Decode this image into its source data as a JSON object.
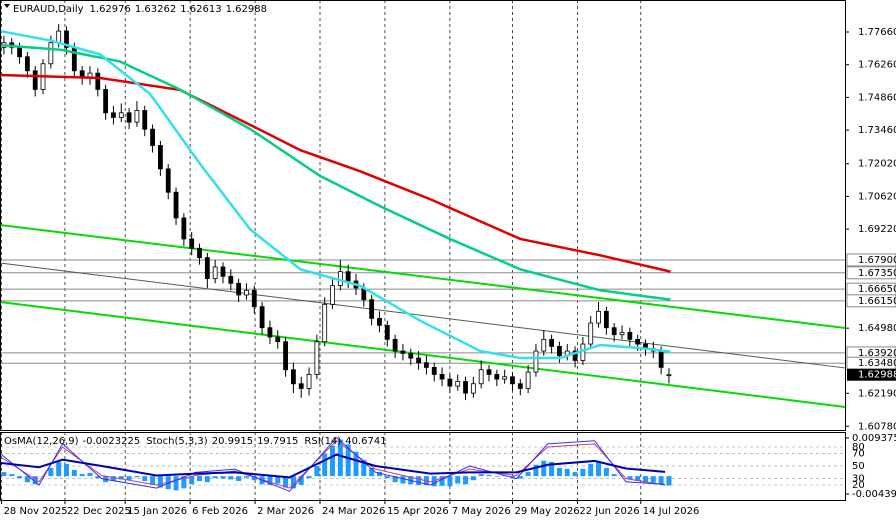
{
  "chart_data": {
    "type": "candlestick",
    "symbol": "EURAUD,Daily",
    "ylim": [
      1.6062,
      1.7903
    ],
    "xlim": [
      0,
      108
    ],
    "grid": true,
    "yticks": [
      {
        "value": 1.7766,
        "label": "1.77660"
      },
      {
        "value": 1.7626,
        "label": "1.76260"
      },
      {
        "value": 1.7486,
        "label": "1.74860"
      },
      {
        "value": 1.7346,
        "label": "1.73460"
      },
      {
        "value": 1.7202,
        "label": "1.72020"
      },
      {
        "value": 1.7062,
        "label": "1.70620"
      },
      {
        "value": 1.6922,
        "label": "1.69220"
      },
      {
        "value": 1.6498,
        "label": "1.64980"
      },
      {
        "value": 1.6219,
        "label": "1.62190"
      },
      {
        "value": 1.6078,
        "label": "1.60780"
      }
    ],
    "xticks": [
      {
        "value": 0.2,
        "label": "28 Nov 2025"
      },
      {
        "value": 8.3,
        "label": "22 Dec 2025"
      },
      {
        "value": 16,
        "label": "15 Jan 2026"
      },
      {
        "value": 24.3,
        "label": "6 Feb 2026"
      },
      {
        "value": 32.6,
        "label": "2 Mar 2026"
      },
      {
        "value": 40.9,
        "label": "24 Mar 2026"
      },
      {
        "value": 49.2,
        "label": "15 Apr 2026"
      },
      {
        "value": 57.5,
        "label": "7 May 2026"
      },
      {
        "value": 65.5,
        "label": "29 May 2026"
      },
      {
        "value": 73.8,
        "label": "22 Jun 2026"
      },
      {
        "value": 81.9,
        "label": "14 Jul 2026"
      }
    ],
    "levels": [
      {
        "value": 1.679,
        "label": "1.67900"
      },
      {
        "value": 1.6735,
        "label": "1.67350"
      },
      {
        "value": 1.6665,
        "label": "1.66650"
      },
      {
        "value": 1.6615,
        "label": "1.66150"
      },
      {
        "value": 1.6392,
        "label": "1.63920"
      },
      {
        "value": 1.6348,
        "label": "1.63480"
      }
    ],
    "ohlc": [
      [
        1.77,
        1.775,
        1.767,
        1.772
      ],
      [
        1.772,
        1.774,
        1.767,
        1.77
      ],
      [
        1.77,
        1.772,
        1.763,
        1.766
      ],
      [
        1.766,
        1.768,
        1.757,
        1.76
      ],
      [
        1.76,
        1.762,
        1.749,
        1.752
      ],
      [
        1.752,
        1.765,
        1.75,
        1.763
      ],
      [
        1.763,
        1.775,
        1.761,
        1.772
      ],
      [
        1.772,
        1.78,
        1.77,
        1.777
      ],
      [
        1.777,
        1.779,
        1.767,
        1.77
      ],
      [
        1.77,
        1.772,
        1.757,
        1.76
      ],
      [
        1.76,
        1.762,
        1.754,
        1.757
      ],
      [
        1.757,
        1.762,
        1.754,
        1.759
      ],
      [
        1.759,
        1.761,
        1.749,
        1.752
      ],
      [
        1.752,
        1.754,
        1.739,
        1.742
      ],
      [
        1.742,
        1.745,
        1.737,
        1.74
      ],
      [
        1.74,
        1.746,
        1.738,
        1.742
      ],
      [
        1.742,
        1.744,
        1.735,
        1.738
      ],
      [
        1.738,
        1.747,
        1.736,
        1.743
      ],
      [
        1.743,
        1.745,
        1.732,
        1.735
      ],
      [
        1.735,
        1.737,
        1.725,
        1.728
      ],
      [
        1.728,
        1.73,
        1.715,
        1.718
      ],
      [
        1.718,
        1.72,
        1.705,
        1.708
      ],
      [
        1.708,
        1.71,
        1.694,
        1.697
      ],
      [
        1.697,
        1.699,
        1.685,
        1.688
      ],
      [
        1.688,
        1.691,
        1.681,
        1.684
      ],
      [
        1.684,
        1.686,
        1.677,
        1.68
      ],
      [
        1.68,
        1.682,
        1.667,
        1.671
      ],
      [
        1.671,
        1.679,
        1.669,
        1.676
      ],
      [
        1.676,
        1.678,
        1.669,
        1.672
      ],
      [
        1.672,
        1.675,
        1.666,
        1.669
      ],
      [
        1.669,
        1.671,
        1.661,
        1.664
      ],
      [
        1.664,
        1.669,
        1.662,
        1.666
      ],
      [
        1.666,
        1.668,
        1.656,
        1.659
      ],
      [
        1.659,
        1.661,
        1.647,
        1.65
      ],
      [
        1.65,
        1.653,
        1.643,
        1.646
      ],
      [
        1.646,
        1.649,
        1.641,
        1.644
      ],
      [
        1.644,
        1.646,
        1.629,
        1.632
      ],
      [
        1.632,
        1.635,
        1.622,
        1.626
      ],
      [
        1.626,
        1.629,
        1.62,
        1.624
      ],
      [
        1.624,
        1.633,
        1.621,
        1.63
      ],
      [
        1.63,
        1.647,
        1.628,
        1.644
      ],
      [
        1.644,
        1.663,
        1.642,
        1.66
      ],
      [
        1.66,
        1.671,
        1.658,
        1.668
      ],
      [
        1.668,
        1.679,
        1.666,
        1.674
      ],
      [
        1.674,
        1.677,
        1.667,
        1.67
      ],
      [
        1.67,
        1.673,
        1.664,
        1.667
      ],
      [
        1.667,
        1.669,
        1.659,
        1.662
      ],
      [
        1.662,
        1.664,
        1.651,
        1.654
      ],
      [
        1.654,
        1.657,
        1.648,
        1.651
      ],
      [
        1.651,
        1.653,
        1.642,
        1.645
      ],
      [
        1.645,
        1.647,
        1.637,
        1.64
      ],
      [
        1.64,
        1.643,
        1.636,
        1.639
      ],
      [
        1.639,
        1.641,
        1.634,
        1.637
      ],
      [
        1.637,
        1.64,
        1.632,
        1.635
      ],
      [
        1.635,
        1.638,
        1.63,
        1.633
      ],
      [
        1.633,
        1.635,
        1.627,
        1.63
      ],
      [
        1.63,
        1.633,
        1.625,
        1.628
      ],
      [
        1.628,
        1.63,
        1.622,
        1.625
      ],
      [
        1.625,
        1.63,
        1.623,
        1.627
      ],
      [
        1.627,
        1.629,
        1.619,
        1.622
      ],
      [
        1.622,
        1.629,
        1.62,
        1.626
      ],
      [
        1.626,
        1.636,
        1.624,
        1.632
      ],
      [
        1.632,
        1.634,
        1.627,
        1.63
      ],
      [
        1.63,
        1.632,
        1.625,
        1.628
      ],
      [
        1.628,
        1.632,
        1.626,
        1.629
      ],
      [
        1.629,
        1.631,
        1.623,
        1.626
      ],
      [
        1.626,
        1.628,
        1.621,
        1.624
      ],
      [
        1.624,
        1.634,
        1.622,
        1.631
      ],
      [
        1.631,
        1.643,
        1.629,
        1.64
      ],
      [
        1.64,
        1.649,
        1.638,
        1.645
      ],
      [
        1.645,
        1.647,
        1.639,
        1.642
      ],
      [
        1.642,
        1.644,
        1.635,
        1.638
      ],
      [
        1.638,
        1.643,
        1.636,
        1.64
      ],
      [
        1.64,
        1.642,
        1.633,
        1.636
      ],
      [
        1.636,
        1.646,
        1.634,
        1.643
      ],
      [
        1.643,
        1.655,
        1.641,
        1.652
      ],
      [
        1.652,
        1.661,
        1.65,
        1.657
      ],
      [
        1.657,
        1.659,
        1.647,
        1.65
      ],
      [
        1.65,
        1.652,
        1.644,
        1.647
      ],
      [
        1.647,
        1.651,
        1.645,
        1.648
      ],
      [
        1.648,
        1.65,
        1.642,
        1.645
      ],
      [
        1.645,
        1.647,
        1.64,
        1.643
      ],
      [
        1.643,
        1.645,
        1.638,
        1.641
      ],
      [
        1.641,
        1.644,
        1.637,
        1.64
      ],
      [
        1.64,
        1.642,
        1.63,
        1.633
      ],
      [
        1.62976,
        1.63262,
        1.62613,
        1.62988
      ]
    ],
    "moving_averages": [
      {
        "color": "#e00000",
        "x": [
          0,
          12.8,
          23,
          32,
          38.4,
          46,
          55,
          66.5,
          76.7,
          85.7
        ],
        "values": [
          1.7582,
          1.7569,
          1.7518,
          1.7368,
          1.726,
          1.717,
          1.705,
          1.688,
          1.681,
          1.674
        ]
      },
      {
        "color": "#00d080",
        "x": [
          0,
          7.7,
          15.3,
          23,
          32,
          40.9,
          48.6,
          57.5,
          66.5,
          76.7,
          85.7
        ],
        "values": [
          1.771,
          1.769,
          1.764,
          1.752,
          1.735,
          1.715,
          1.702,
          1.688,
          1.675,
          1.666,
          1.662
        ]
      },
      {
        "color": "#30e0f0",
        "x": [
          0,
          6.4,
          12.8,
          19.2,
          25.6,
          32,
          38.4,
          46,
          53.7,
          61.4,
          66.5,
          71.6,
          76.7,
          81.8,
          85.7
        ],
        "values": [
          1.777,
          1.773,
          1.767,
          1.75,
          1.72,
          1.692,
          1.675,
          1.668,
          1.653,
          1.64,
          1.637,
          1.637,
          1.6426,
          1.6413,
          1.6397
        ]
      }
    ],
    "trendlines": [
      {
        "color": "#00dd00",
        "x": [
          0,
          108
        ],
        "values": [
          1.69398,
          1.64989
        ]
      },
      {
        "color": "#00dd00",
        "x": [
          0,
          108
        ],
        "values": [
          1.66102,
          1.61607
        ]
      },
      {
        "color": "#4a604a",
        "x": [
          0,
          108
        ],
        "values": [
          1.67771,
          1.63277
        ]
      }
    ],
    "osma_label": "OsMA(12,26,9)",
    "osma_ylim": [
      -0.005866,
      0.01085
    ],
    "osma_ticks": [
      {
        "value": 0.009375,
        "label": "0.009375"
      },
      {
        "value": -0.004391,
        "label": "-0.004391"
      }
    ],
    "osma": [
      0.001,
      0.0005,
      -0.0005,
      -0.0015,
      -0.002,
      0,
      0.002,
      0.0035,
      0.003,
      0.0015,
      0.0005,
      0.0008,
      -0.0005,
      -0.0015,
      -0.0012,
      -0.0008,
      -0.001,
      -0.0003,
      -0.0012,
      -0.002,
      -0.0028,
      -0.0032,
      -0.0035,
      -0.003,
      -0.002,
      -0.0012,
      -0.0015,
      -0.0005,
      -0.0006,
      -0.0008,
      -0.0012,
      -0.0004,
      -0.001,
      -0.002,
      -0.0022,
      -0.0018,
      -0.0028,
      -0.003,
      -0.0022,
      -0.0005,
      0.0025,
      0.0055,
      0.0075,
      0.009,
      0.0078,
      0.006,
      0.004,
      0.002,
      0.001,
      -0.0005,
      -0.0015,
      -0.0018,
      -0.002,
      -0.0022,
      -0.0022,
      -0.0025,
      -0.0024,
      -0.0025,
      -0.0018,
      -0.002,
      -0.001,
      0.0005,
      0.0003,
      0,
      0.0002,
      -0.0004,
      -0.0006,
      0.001,
      0.0028,
      0.0038,
      0.0035,
      0.002,
      0.0018,
      0.001,
      0.0018,
      0.003,
      0.0035,
      0.002,
      0.0005,
      0.0002,
      -0.0008,
      -0.0012,
      -0.0015,
      -0.0016,
      -0.002,
      -0.0023225
    ],
    "osma_color": "#1e9bff",
    "osc_ylim": [
      -3.8,
      103.8
    ],
    "osc_ticks": [
      80,
      70,
      50,
      30,
      20
    ],
    "osc_x": [
      0,
      5,
      8,
      13,
      20,
      25,
      30,
      37,
      43,
      48,
      55,
      60,
      66,
      70,
      76,
      80,
      85
    ],
    "stoch_label": "Stoch(5,3,3)",
    "stoch_main": {
      "color": "#3030ff",
      "values": [
        70,
        20,
        85,
        30,
        15,
        40,
        45,
        10,
        95,
        40,
        20,
        50,
        30,
        85,
        90,
        25,
        20.9915
      ]
    },
    "stoch_signal": {
      "color": "#c04080",
      "values": [
        65,
        25,
        80,
        35,
        20,
        35,
        42,
        15,
        90,
        45,
        25,
        45,
        35,
        80,
        85,
        30,
        19.7915
      ]
    },
    "rsi_label": "RSI(14)",
    "rsi": {
      "color": "#0000b0",
      "values": [
        55,
        48,
        60,
        50,
        35,
        38,
        40,
        32,
        68,
        50,
        38,
        40,
        40,
        52,
        58,
        46,
        40.6741
      ]
    }
  }
}
